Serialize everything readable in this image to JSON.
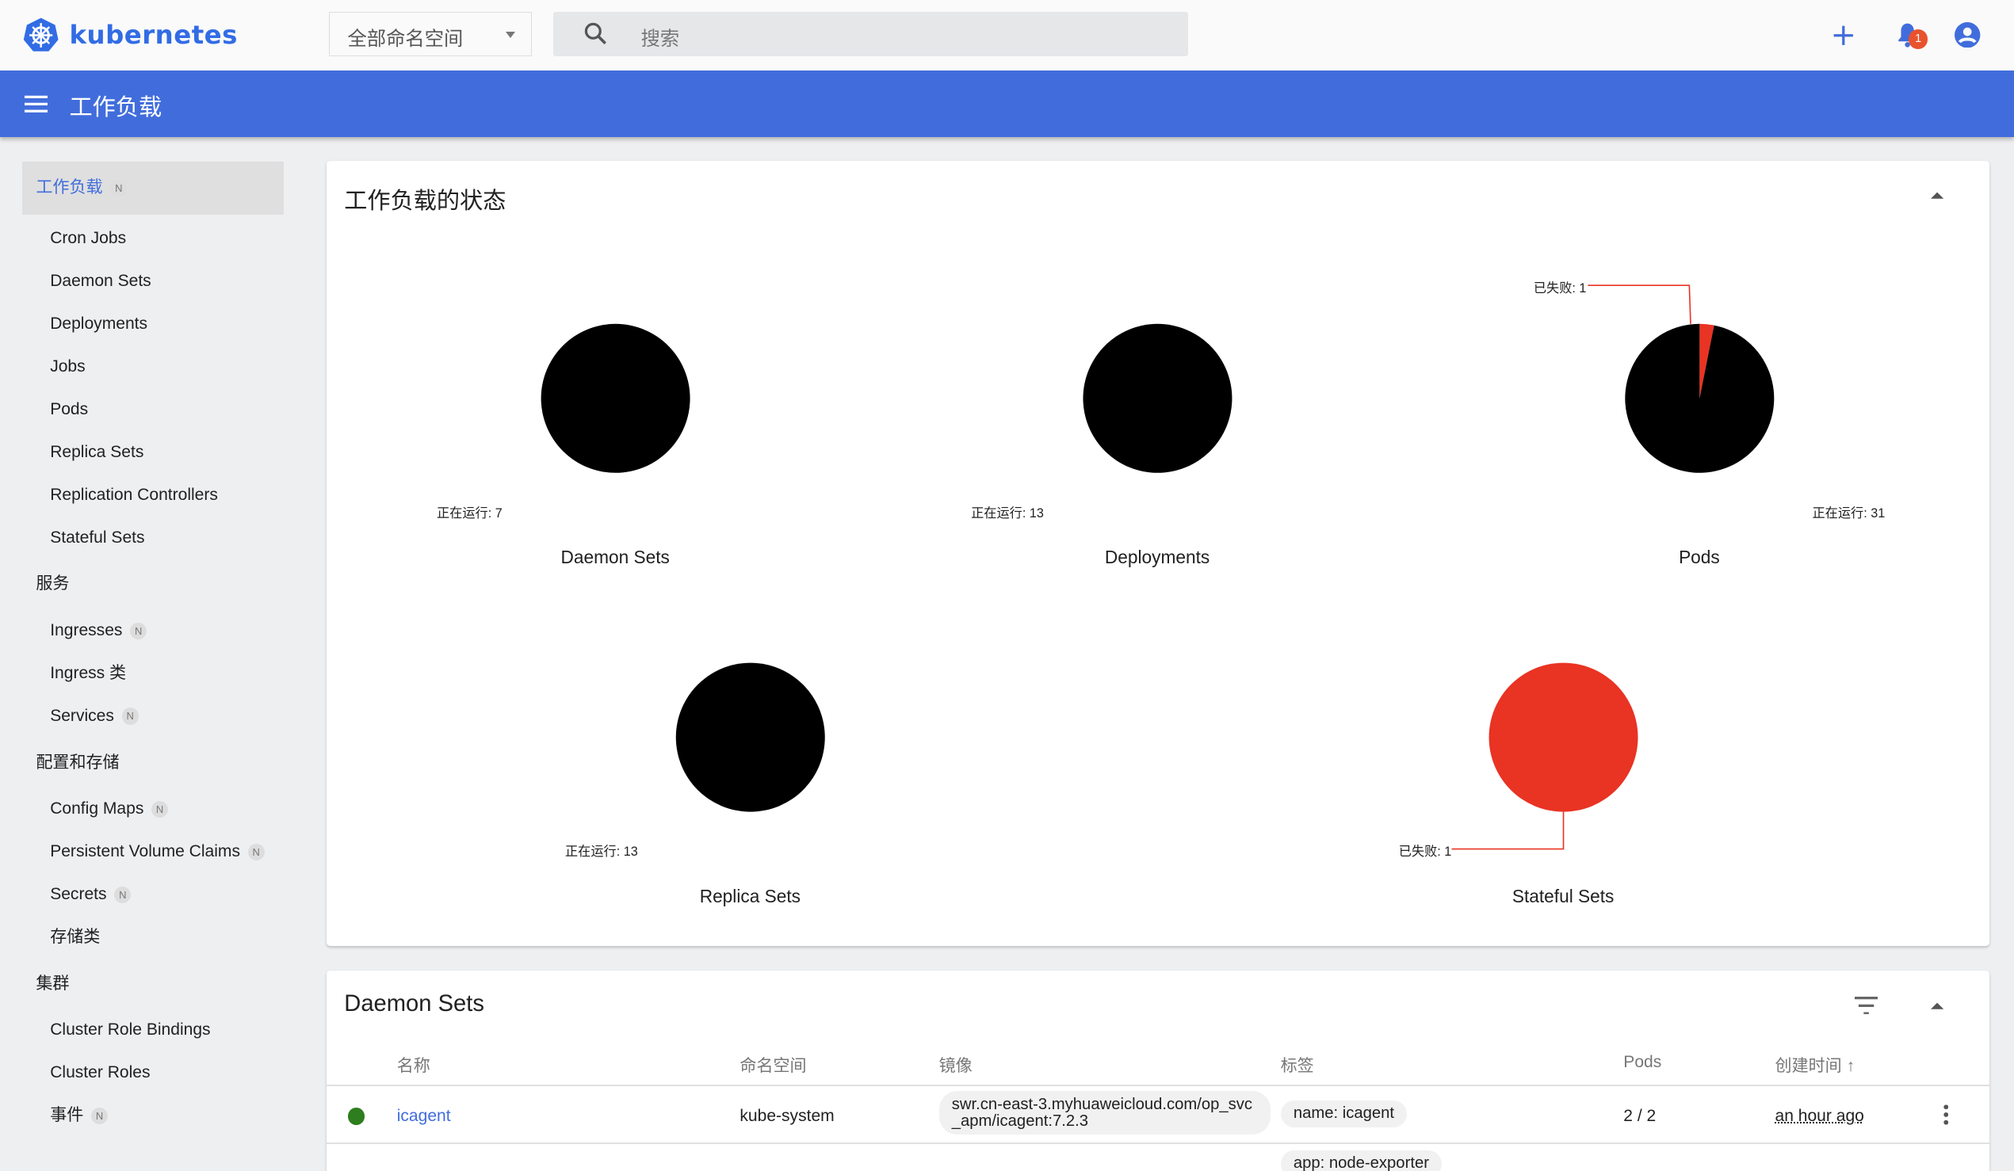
{
  "header": {
    "brand": "kubernetes",
    "namespace_select": "全部命名空间",
    "search_placeholder": "搜索",
    "notification_count": "1",
    "icons": [
      "add-icon",
      "bell-icon",
      "account-icon"
    ]
  },
  "toolbar": {
    "title": "工作负载",
    "menu_icon": "menu-icon"
  },
  "sidebar": {
    "active": {
      "label": "工作负载",
      "badge": "N"
    },
    "workloads": [
      {
        "label": "Cron Jobs"
      },
      {
        "label": "Daemon Sets"
      },
      {
        "label": "Deployments"
      },
      {
        "label": "Jobs"
      },
      {
        "label": "Pods"
      },
      {
        "label": "Replica Sets"
      },
      {
        "label": "Replication Controllers"
      },
      {
        "label": "Stateful Sets"
      }
    ],
    "services_header": "服务",
    "services": [
      {
        "label": "Ingresses",
        "badge": "N"
      },
      {
        "label": "Ingress 类"
      },
      {
        "label": "Services",
        "badge": "N"
      }
    ],
    "config_header": "配置和存储",
    "config": [
      {
        "label": "Config Maps",
        "badge": "N"
      },
      {
        "label": "Persistent Volume Claims",
        "badge": "N"
      },
      {
        "label": "Secrets",
        "badge": "N"
      },
      {
        "label": "存储类"
      }
    ],
    "cluster_header": "集群",
    "cluster": [
      {
        "label": "Cluster Role Bindings"
      },
      {
        "label": "Cluster Roles"
      },
      {
        "label": "事件",
        "badge": "N"
      }
    ]
  },
  "status_card": {
    "title": "工作负载的状态"
  },
  "chart_data": [
    {
      "type": "pie",
      "title": "Daemon Sets",
      "slices": [
        {
          "label": "正在运行",
          "value": 7,
          "color": "#000000"
        }
      ],
      "labels": [
        "正在运行: 7"
      ]
    },
    {
      "type": "pie",
      "title": "Deployments",
      "slices": [
        {
          "label": "正在运行",
          "value": 13,
          "color": "#000000"
        }
      ],
      "labels": [
        "正在运行: 13"
      ]
    },
    {
      "type": "pie",
      "title": "Pods",
      "slices": [
        {
          "label": "已失败",
          "value": 1,
          "color": "#e93323"
        },
        {
          "label": "正在运行",
          "value": 31,
          "color": "#000000"
        }
      ],
      "labels": [
        "已失败: 1",
        "正在运行: 31"
      ]
    },
    {
      "type": "pie",
      "title": "Replica Sets",
      "slices": [
        {
          "label": "正在运行",
          "value": 13,
          "color": "#000000"
        }
      ],
      "labels": [
        "正在运行: 13"
      ]
    },
    {
      "type": "pie",
      "title": "Stateful Sets",
      "slices": [
        {
          "label": "已失败",
          "value": 1,
          "color": "#e93323"
        }
      ],
      "labels": [
        "已失败: 1"
      ]
    }
  ],
  "daemon_sets": {
    "title": "Daemon Sets",
    "columns": [
      "名称",
      "命名空间",
      "镜像",
      "标签",
      "Pods",
      "创建时间"
    ],
    "rows": [
      {
        "status": "running",
        "status_color": "#2e7d1e",
        "name": "icagent",
        "namespace": "kube-system",
        "image": "swr.cn-east-3.myhuaweicloud.com/op_svc_apm/icagent:7.2.3",
        "labels": [
          "name: icagent"
        ],
        "pods": "2 / 2",
        "created": "an hour ago"
      },
      {
        "labels": [
          "app: node-exporter"
        ]
      }
    ]
  }
}
